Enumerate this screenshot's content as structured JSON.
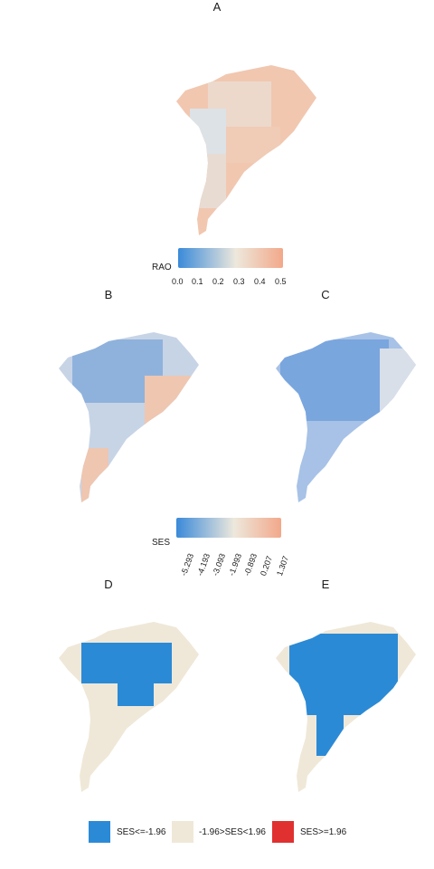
{
  "panels": {
    "A": "A",
    "B": "B",
    "C": "C",
    "D": "D",
    "E": "E"
  },
  "legend_rao": {
    "title": "RAO",
    "ticks": [
      "0.0",
      "0.1",
      "0.2",
      "0.3",
      "0.4",
      "0.5"
    ],
    "colors": {
      "low": "#3a8ad9",
      "mid": "#ede8dc",
      "high": "#f2a88a"
    }
  },
  "legend_ses": {
    "title": "SES",
    "ticks": [
      "-5.293",
      "-4.193",
      "-3.093",
      "-1.993",
      "-0.893",
      "0.207",
      "1.307"
    ],
    "colors": {
      "low": "#3a8ad9",
      "mid": "#ede8dc",
      "high": "#f2a88a"
    }
  },
  "legend_cat": {
    "items": [
      {
        "label": "SES<=-1.96",
        "color": "#2b8ad6"
      },
      {
        "label": "-1.96>SES<1.96",
        "color": "#efe8d8"
      },
      {
        "label": "SES>=1.96",
        "color": "#e03030"
      }
    ]
  },
  "colors": {
    "land_neutral": "#efe8d8",
    "ses_blue": "#2b8ad6",
    "ses_red": "#e03030",
    "islands": "#888888"
  }
}
